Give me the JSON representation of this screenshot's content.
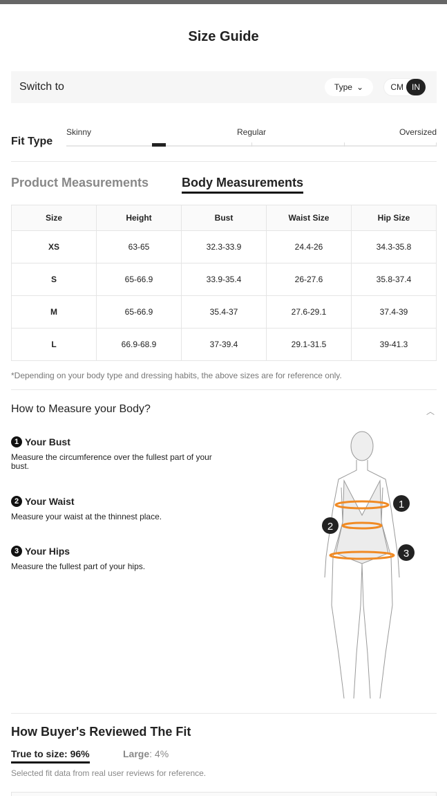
{
  "title": "Size Guide",
  "switch": {
    "label": "Switch to",
    "type_label": "Type",
    "unit_cm": "CM",
    "unit_in": "IN",
    "selected_unit": "IN"
  },
  "fit": {
    "label": "Fit Type",
    "scale": [
      "Skinny",
      "Regular",
      "Oversized"
    ],
    "position": 0.25
  },
  "tabs": [
    {
      "label": "Product Measurements",
      "active": false
    },
    {
      "label": "Body Measurements",
      "active": true
    }
  ],
  "table": {
    "headers": [
      "Size",
      "Height",
      "Bust",
      "Waist Size",
      "Hip Size"
    ],
    "rows": [
      [
        "XS",
        "63-65",
        "32.3-33.9",
        "24.4-26",
        "34.3-35.8"
      ],
      [
        "S",
        "65-66.9",
        "33.9-35.4",
        "26-27.6",
        "35.8-37.4"
      ],
      [
        "M",
        "65-66.9",
        "35.4-37",
        "27.6-29.1",
        "37.4-39"
      ],
      [
        "L",
        "66.9-68.9",
        "37-39.4",
        "29.1-31.5",
        "39-41.3"
      ]
    ]
  },
  "note": "*Depending on your body type and dressing habits, the above sizes are for reference only.",
  "howto": {
    "title": "How to Measure your Body?",
    "steps": [
      {
        "num": "1",
        "title": "Your Bust",
        "text": "Measure the circumference over the fullest part of your bust."
      },
      {
        "num": "2",
        "title": "Your Waist",
        "text": "Measure your waist at the thinnest place."
      },
      {
        "num": "3",
        "title": "Your Hips",
        "text": "Measure the fullest part of your hips."
      }
    ]
  },
  "reviews": {
    "title": "How Buyer's Reviewed The Fit",
    "true_label": "True to size: 96%",
    "large_label": "Large",
    "large_value": ": 4%",
    "note": "Selected fit data from real user reviews for reference."
  },
  "colors": {
    "accent": "#222222",
    "measure_ring": "#f08a24"
  }
}
